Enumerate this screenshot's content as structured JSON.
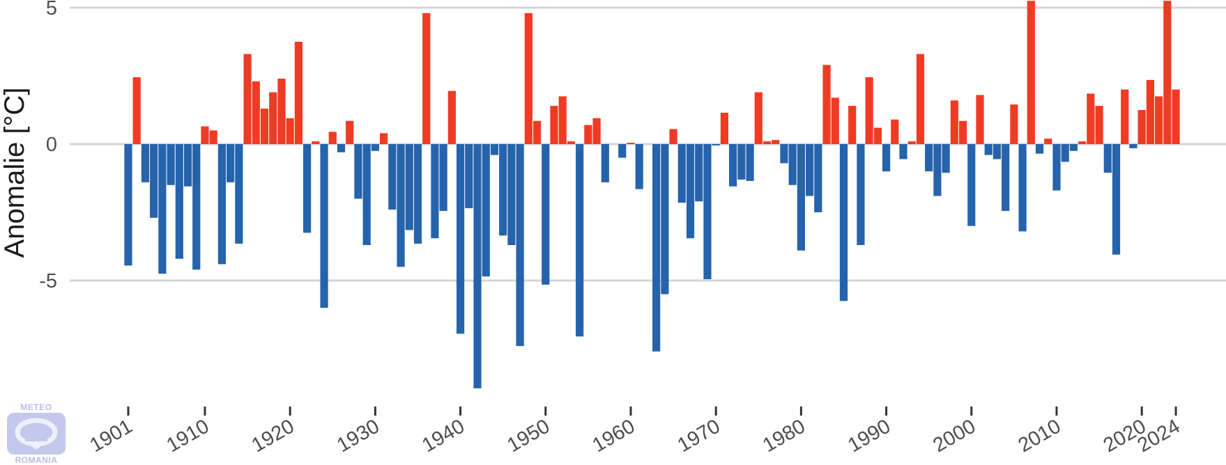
{
  "chart_data": {
    "type": "bar",
    "title": "",
    "xlabel": "",
    "ylabel": "Anomalie [°C]",
    "ylim": [
      -9.5,
      5.3
    ],
    "yticks": [
      {
        "value": 5,
        "label": "5"
      },
      {
        "value": 0,
        "label": "0"
      },
      {
        "value": -5,
        "label": "-5"
      }
    ],
    "xticks": [
      1901,
      1910,
      1920,
      1930,
      1940,
      1950,
      1960,
      1970,
      1980,
      1990,
      2000,
      2010,
      2020,
      2024
    ],
    "grid": true,
    "colors": {
      "positive": "#ef3b24",
      "negative": "#2563ac",
      "grid": "#d4d4d4"
    },
    "x": [
      1901,
      1902,
      1903,
      1904,
      1905,
      1906,
      1907,
      1908,
      1909,
      1910,
      1911,
      1912,
      1913,
      1914,
      1915,
      1916,
      1917,
      1918,
      1919,
      1920,
      1921,
      1922,
      1923,
      1924,
      1925,
      1926,
      1927,
      1928,
      1929,
      1930,
      1931,
      1932,
      1933,
      1934,
      1935,
      1936,
      1937,
      1938,
      1939,
      1940,
      1941,
      1942,
      1943,
      1944,
      1945,
      1946,
      1947,
      1948,
      1949,
      1950,
      1951,
      1952,
      1953,
      1954,
      1955,
      1956,
      1957,
      1958,
      1959,
      1960,
      1961,
      1962,
      1963,
      1964,
      1965,
      1966,
      1967,
      1968,
      1969,
      1970,
      1971,
      1972,
      1973,
      1974,
      1975,
      1976,
      1977,
      1978,
      1979,
      1980,
      1981,
      1982,
      1983,
      1984,
      1985,
      1986,
      1987,
      1988,
      1989,
      1990,
      1991,
      1992,
      1993,
      1994,
      1995,
      1996,
      1997,
      1998,
      1999,
      2000,
      2001,
      2002,
      2003,
      2004,
      2005,
      2006,
      2007,
      2008,
      2009,
      2010,
      2011,
      2012,
      2013,
      2014,
      2015,
      2016,
      2017,
      2018,
      2019,
      2020,
      2021,
      2022,
      2023,
      2024
    ],
    "values": [
      -4.45,
      2.45,
      -1.4,
      -2.7,
      -4.75,
      -1.5,
      -4.2,
      -1.55,
      -4.6,
      0.65,
      0.5,
      -4.4,
      -1.4,
      -3.65,
      3.3,
      2.3,
      1.3,
      1.9,
      2.4,
      0.95,
      3.75,
      -3.25,
      0.1,
      -6.0,
      0.45,
      -0.3,
      0.85,
      -2.0,
      -3.7,
      -0.25,
      0.4,
      -2.4,
      -4.5,
      -3.15,
      -3.65,
      4.8,
      -3.45,
      -2.45,
      1.95,
      -6.95,
      -2.35,
      -8.95,
      -4.85,
      -0.4,
      -3.35,
      -3.7,
      -7.4,
      4.8,
      0.85,
      -5.15,
      1.4,
      1.75,
      0.1,
      -7.05,
      0.7,
      0.95,
      -1.4,
      0.0,
      -0.5,
      0.05,
      -1.65,
      0.0,
      -7.6,
      -5.5,
      0.55,
      -2.15,
      -3.45,
      -2.1,
      -4.95,
      -0.05,
      1.15,
      -1.55,
      -1.3,
      -1.35,
      1.9,
      0.1,
      0.15,
      -0.7,
      -1.5,
      -3.9,
      -1.9,
      -2.5,
      2.9,
      1.7,
      -5.75,
      1.4,
      -3.7,
      2.45,
      0.6,
      -1.0,
      0.9,
      -0.55,
      0.1,
      3.3,
      -1.0,
      -1.9,
      -1.05,
      1.6,
      0.85,
      -3.0,
      1.8,
      -0.4,
      -0.55,
      -2.45,
      1.45,
      -3.2,
      5.25,
      -0.35,
      0.2,
      -1.7,
      -0.65,
      -0.25,
      0.1,
      1.85,
      1.4,
      -1.05,
      -4.05,
      2.0,
      -0.15,
      1.25,
      2.35,
      1.75,
      5.25,
      2.0
    ]
  },
  "logo": {
    "top_text": "METEO",
    "bottom_text": "ROMANIA",
    "icon": "meteo-romania-logo-icon"
  }
}
